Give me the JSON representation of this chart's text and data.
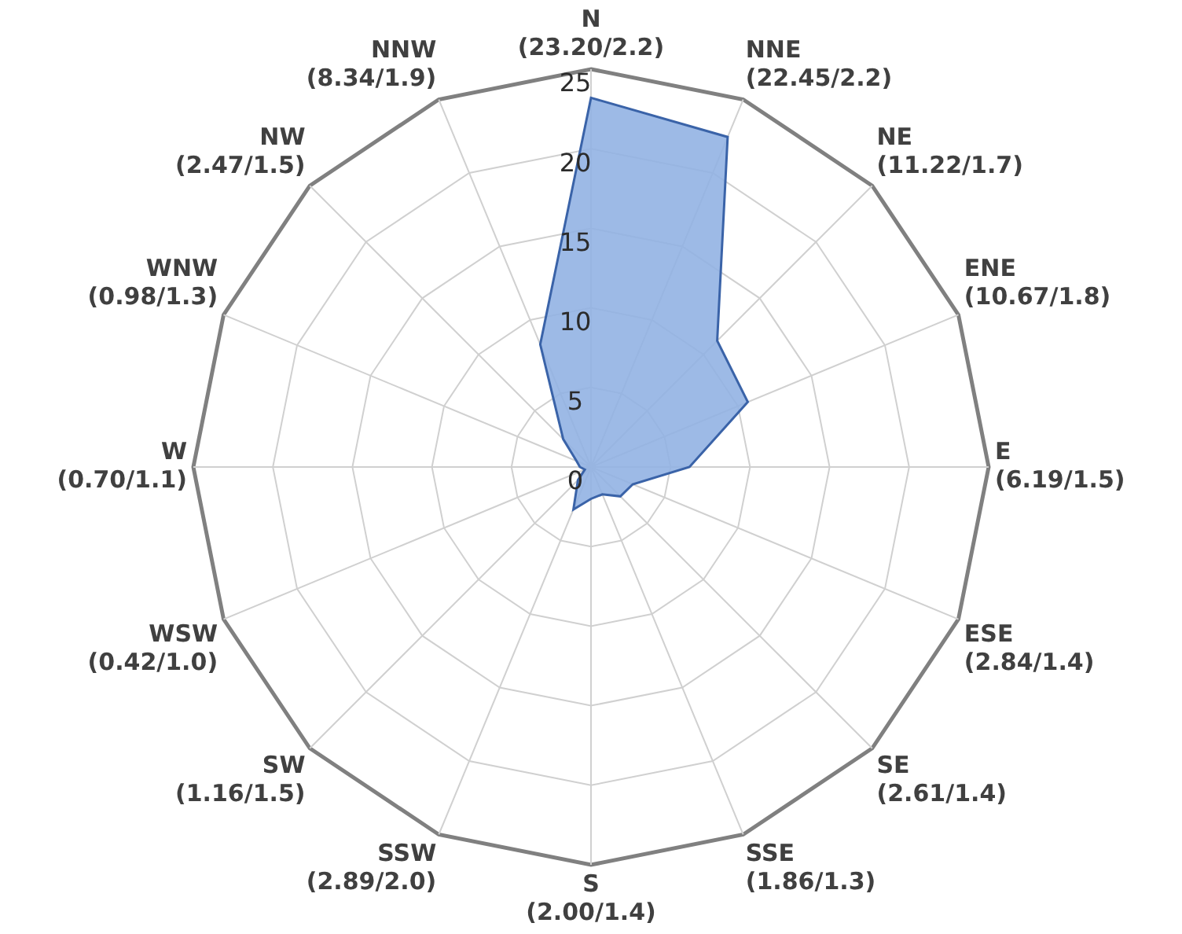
{
  "chart_data": {
    "type": "radar",
    "categories": [
      "N\n(23.20/2.2)",
      "NNE\n(22.45/2.2)",
      "NE\n(11.22/1.7)",
      "ENE\n(10.67/1.8)",
      "E\n(6.19/1.5)",
      "ESE\n(2.84/1.4)",
      "SE\n(2.61/1.4)",
      "SSE\n(1.86/1.3)",
      "S\n(2.00/1.4)",
      "SSW\n(2.89/2.0)",
      "SW\n(1.16/1.5)",
      "WSW\n(0.42/1.0)",
      "W\n(0.70/1.1)",
      "WNW\n(0.98/1.3)",
      "NW\n(2.47/1.5)",
      "NNW\n(8.34/1.9)"
    ],
    "series": [
      {
        "color": "#8fb1e3",
        "values": [
          23.2,
          22.45,
          11.22,
          10.67,
          6.19,
          2.84,
          2.61,
          1.86,
          2.0,
          2.89,
          1.16,
          0.42,
          0.7,
          0.98,
          2.47,
          8.34
        ]
      }
    ],
    "ylim": [
      0,
      25
    ],
    "yticks": [
      0,
      5,
      10,
      15,
      20,
      25
    ],
    "grid": true,
    "legend": false,
    "marker": "none"
  }
}
